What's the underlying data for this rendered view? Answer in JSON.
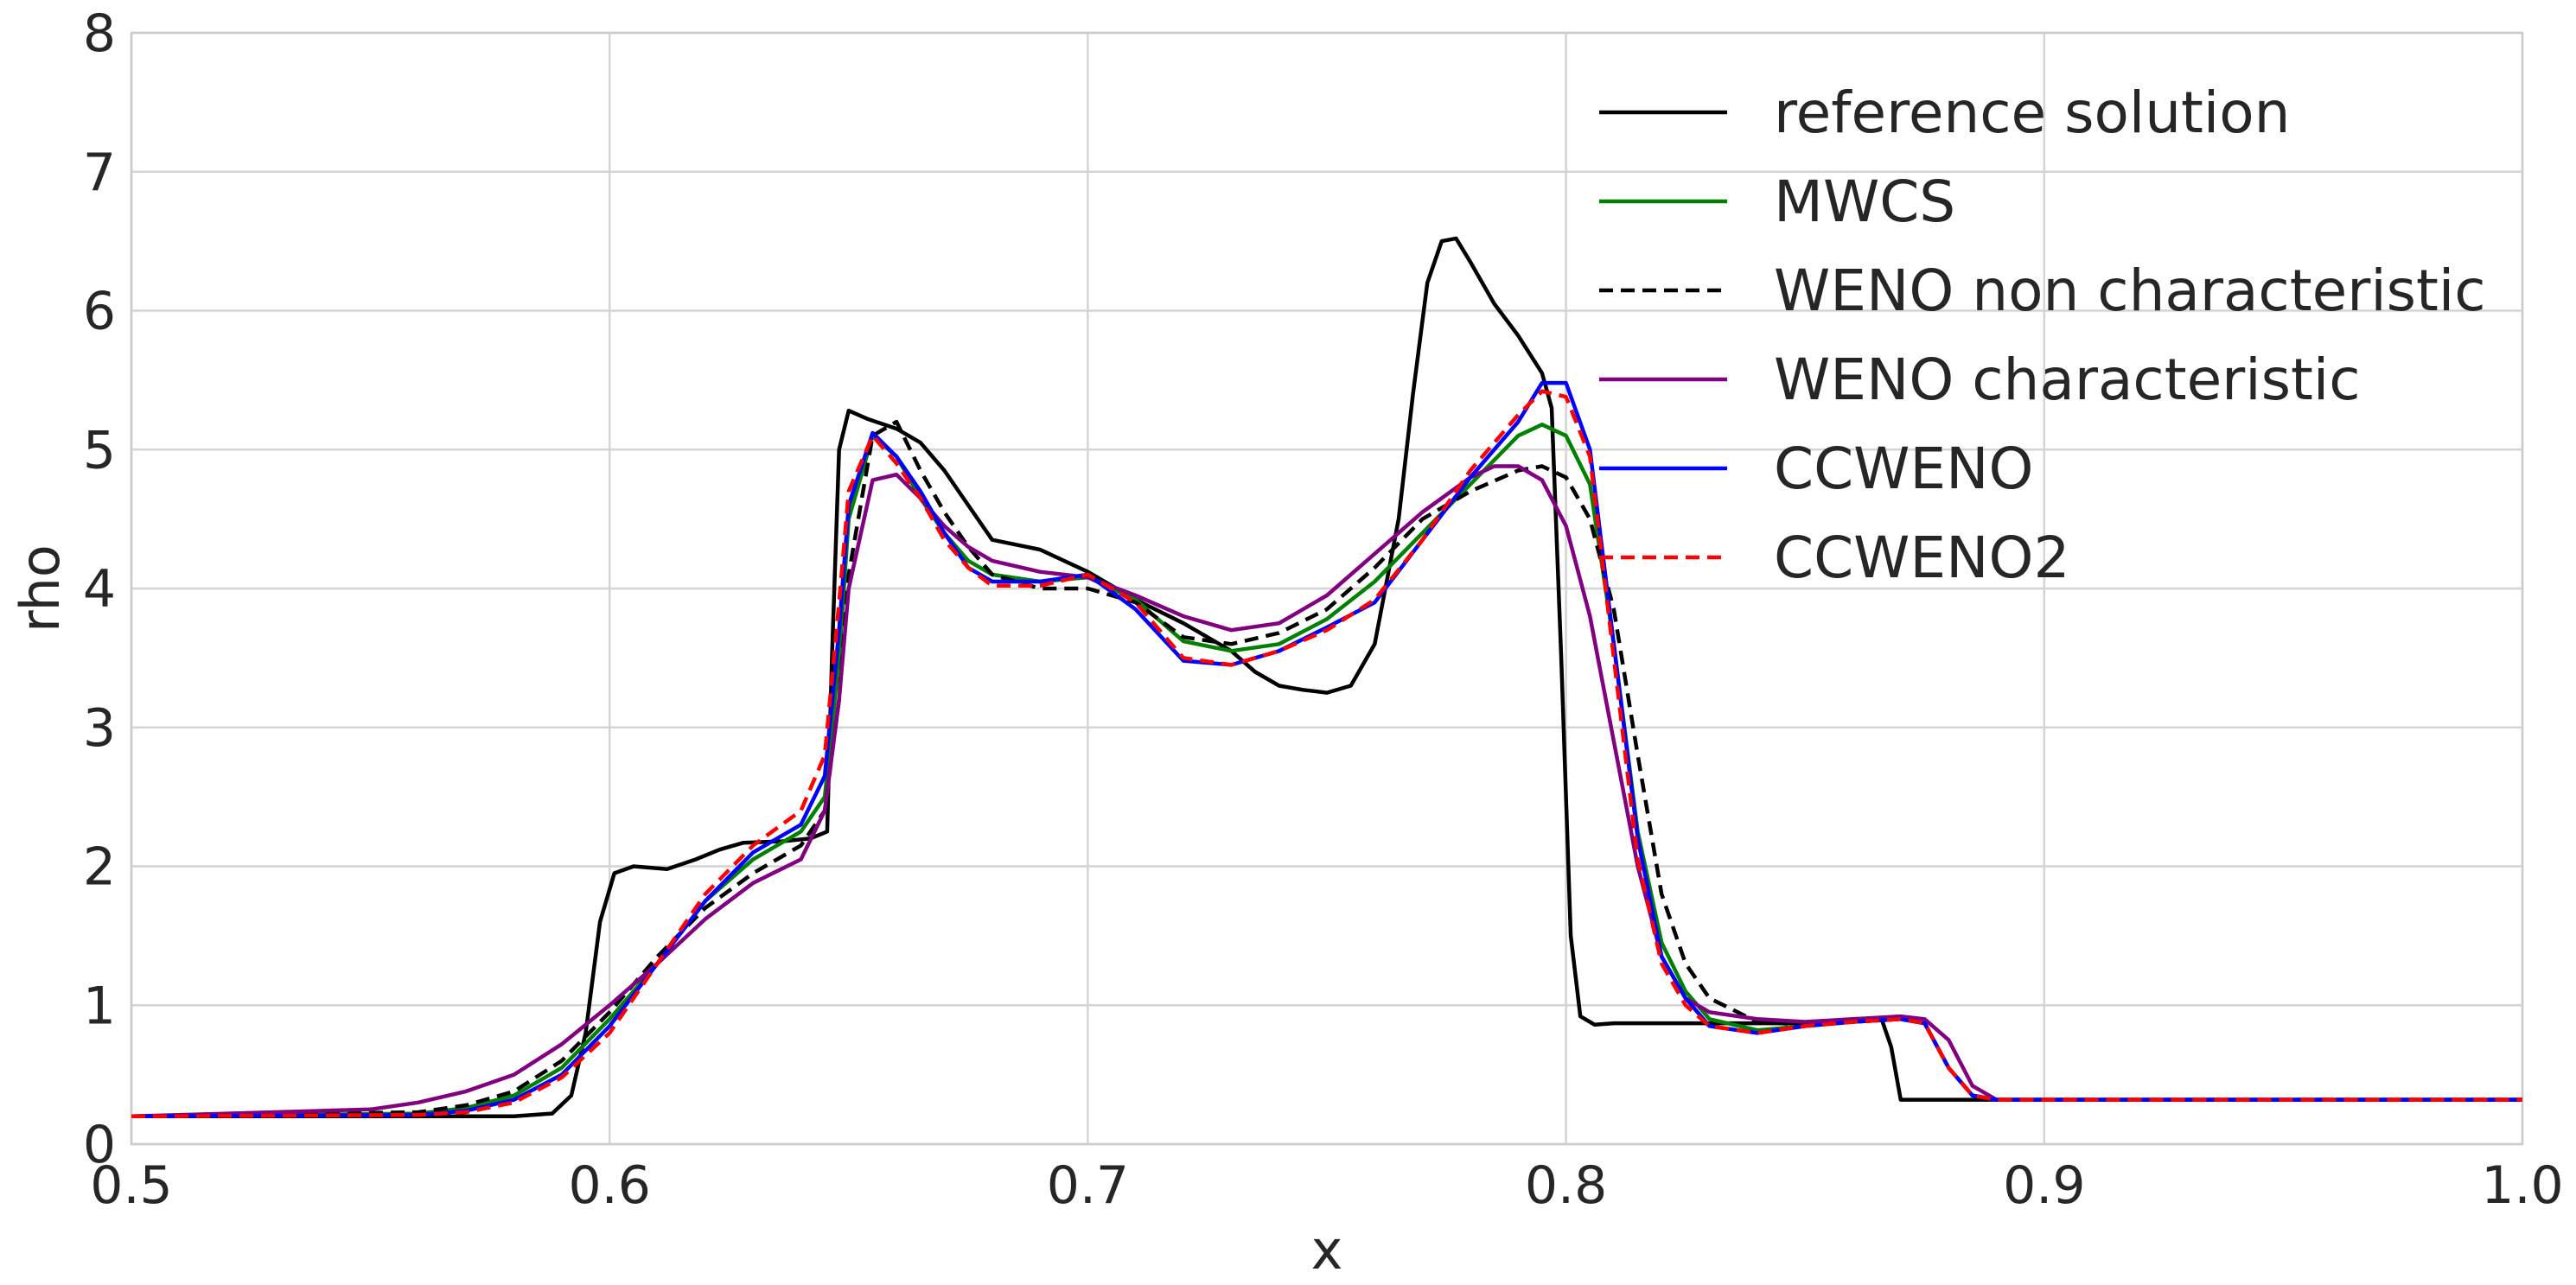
{
  "chart_data": {
    "type": "line",
    "title": "",
    "xlabel": "x",
    "ylabel": "rho",
    "xlim": [
      0.5,
      1.0
    ],
    "ylim": [
      0,
      8
    ],
    "xticks": [
      "0.5",
      "0.6",
      "0.7",
      "0.8",
      "0.9",
      "1.0"
    ],
    "yticks": [
      "0",
      "1",
      "2",
      "3",
      "4",
      "5",
      "6",
      "7",
      "8"
    ],
    "grid": true,
    "legend_position": "top-right",
    "series": [
      {
        "name": "reference solution",
        "color": "#000000",
        "dash": "solid",
        "x": [
          0.5,
          0.58,
          0.588,
          0.592,
          0.595,
          0.598,
          0.601,
          0.605,
          0.612,
          0.618,
          0.623,
          0.628,
          0.636,
          0.642,
          0.6455,
          0.6465,
          0.648,
          0.65,
          0.654,
          0.66,
          0.665,
          0.67,
          0.675,
          0.68,
          0.69,
          0.7,
          0.71,
          0.72,
          0.73,
          0.735,
          0.74,
          0.745,
          0.75,
          0.755,
          0.76,
          0.765,
          0.768,
          0.771,
          0.774,
          0.777,
          0.78,
          0.785,
          0.79,
          0.795,
          0.797,
          0.799,
          0.801,
          0.803,
          0.806,
          0.81,
          0.82,
          0.83,
          0.84,
          0.85,
          0.86,
          0.866,
          0.868,
          0.87,
          0.88,
          0.9,
          1.0
        ],
        "y": [
          0.2,
          0.2,
          0.22,
          0.35,
          0.8,
          1.6,
          1.95,
          2.0,
          1.98,
          2.05,
          2.12,
          2.17,
          2.18,
          2.2,
          2.25,
          3.5,
          5.0,
          5.28,
          5.22,
          5.15,
          5.05,
          4.85,
          4.6,
          4.35,
          4.28,
          4.12,
          3.92,
          3.75,
          3.55,
          3.4,
          3.3,
          3.27,
          3.25,
          3.3,
          3.6,
          4.5,
          5.4,
          6.2,
          6.5,
          6.52,
          6.35,
          6.05,
          5.82,
          5.55,
          5.3,
          3.5,
          1.5,
          0.92,
          0.86,
          0.87,
          0.87,
          0.87,
          0.87,
          0.87,
          0.88,
          0.9,
          0.7,
          0.32,
          0.32,
          0.32,
          0.32
        ]
      },
      {
        "name": "MWCS",
        "color": "#008000",
        "dash": "solid",
        "x": [
          0.5,
          0.56,
          0.57,
          0.58,
          0.59,
          0.6,
          0.61,
          0.62,
          0.63,
          0.64,
          0.645,
          0.648,
          0.65,
          0.655,
          0.66,
          0.665,
          0.67,
          0.675,
          0.68,
          0.69,
          0.7,
          0.71,
          0.72,
          0.73,
          0.74,
          0.75,
          0.76,
          0.77,
          0.78,
          0.79,
          0.795,
          0.8,
          0.805,
          0.81,
          0.815,
          0.82,
          0.825,
          0.83,
          0.84,
          0.85,
          0.86,
          0.87,
          0.875,
          0.88,
          0.885,
          0.89,
          0.9,
          1.0
        ],
        "y": [
          0.2,
          0.22,
          0.26,
          0.35,
          0.55,
          0.9,
          1.3,
          1.75,
          2.05,
          2.25,
          2.5,
          3.5,
          4.5,
          5.1,
          4.95,
          4.65,
          4.4,
          4.2,
          4.1,
          4.05,
          4.08,
          3.92,
          3.62,
          3.55,
          3.6,
          3.78,
          4.05,
          4.4,
          4.75,
          5.1,
          5.18,
          5.1,
          4.75,
          3.6,
          2.25,
          1.45,
          1.1,
          0.9,
          0.82,
          0.85,
          0.88,
          0.9,
          0.87,
          0.55,
          0.35,
          0.32,
          0.32,
          0.32
        ]
      },
      {
        "name": "WENO non characteristic",
        "color": "#000000",
        "dash": "dashed",
        "x": [
          0.5,
          0.56,
          0.57,
          0.58,
          0.59,
          0.6,
          0.61,
          0.62,
          0.63,
          0.64,
          0.645,
          0.648,
          0.65,
          0.655,
          0.66,
          0.665,
          0.67,
          0.675,
          0.68,
          0.69,
          0.7,
          0.71,
          0.72,
          0.73,
          0.74,
          0.75,
          0.76,
          0.77,
          0.78,
          0.79,
          0.795,
          0.8,
          0.805,
          0.81,
          0.815,
          0.82,
          0.825,
          0.83,
          0.84,
          0.85,
          0.86,
          0.87,
          0.875,
          0.88,
          0.885,
          0.89,
          0.9,
          1.0
        ],
        "y": [
          0.2,
          0.23,
          0.28,
          0.38,
          0.6,
          0.95,
          1.35,
          1.7,
          1.95,
          2.15,
          2.4,
          3.2,
          4.1,
          5.1,
          5.2,
          4.85,
          4.55,
          4.3,
          4.1,
          4.0,
          4.0,
          3.9,
          3.65,
          3.6,
          3.68,
          3.85,
          4.15,
          4.5,
          4.7,
          4.85,
          4.88,
          4.8,
          4.5,
          3.85,
          2.8,
          1.8,
          1.3,
          1.05,
          0.88,
          0.86,
          0.88,
          0.9,
          0.87,
          0.55,
          0.35,
          0.32,
          0.32,
          0.32
        ]
      },
      {
        "name": "WENO characteristic",
        "color": "#800080",
        "dash": "solid",
        "x": [
          0.5,
          0.55,
          0.56,
          0.57,
          0.58,
          0.59,
          0.6,
          0.61,
          0.62,
          0.63,
          0.64,
          0.645,
          0.648,
          0.65,
          0.655,
          0.66,
          0.665,
          0.67,
          0.675,
          0.68,
          0.69,
          0.7,
          0.71,
          0.72,
          0.73,
          0.74,
          0.75,
          0.76,
          0.77,
          0.78,
          0.785,
          0.79,
          0.795,
          0.8,
          0.805,
          0.81,
          0.815,
          0.82,
          0.825,
          0.83,
          0.84,
          0.85,
          0.86,
          0.87,
          0.875,
          0.88,
          0.885,
          0.89,
          0.9,
          1.0
        ],
        "y": [
          0.2,
          0.25,
          0.3,
          0.38,
          0.5,
          0.72,
          1.0,
          1.3,
          1.62,
          1.88,
          2.05,
          2.4,
          3.2,
          4.0,
          4.78,
          4.82,
          4.65,
          4.45,
          4.3,
          4.2,
          4.12,
          4.08,
          3.95,
          3.8,
          3.7,
          3.75,
          3.95,
          4.25,
          4.55,
          4.8,
          4.88,
          4.88,
          4.78,
          4.45,
          3.8,
          2.9,
          2.0,
          1.35,
          1.05,
          0.95,
          0.9,
          0.88,
          0.9,
          0.92,
          0.9,
          0.75,
          0.42,
          0.32,
          0.32,
          0.32
        ]
      },
      {
        "name": "CCWENO",
        "color": "#0000ff",
        "dash": "solid",
        "x": [
          0.5,
          0.56,
          0.57,
          0.58,
          0.59,
          0.6,
          0.61,
          0.62,
          0.63,
          0.64,
          0.645,
          0.648,
          0.65,
          0.655,
          0.66,
          0.665,
          0.67,
          0.675,
          0.68,
          0.69,
          0.7,
          0.71,
          0.72,
          0.73,
          0.74,
          0.75,
          0.76,
          0.77,
          0.78,
          0.79,
          0.795,
          0.8,
          0.805,
          0.81,
          0.815,
          0.82,
          0.825,
          0.83,
          0.84,
          0.85,
          0.86,
          0.87,
          0.875,
          0.88,
          0.885,
          0.89,
          0.9,
          1.0
        ],
        "y": [
          0.2,
          0.21,
          0.24,
          0.32,
          0.5,
          0.85,
          1.3,
          1.75,
          2.1,
          2.3,
          2.65,
          3.7,
          4.6,
          5.12,
          4.95,
          4.7,
          4.4,
          4.15,
          4.05,
          4.05,
          4.1,
          3.85,
          3.48,
          3.45,
          3.55,
          3.72,
          3.9,
          4.35,
          4.8,
          5.2,
          5.48,
          5.48,
          5.0,
          3.6,
          2.2,
          1.35,
          1.05,
          0.85,
          0.8,
          0.85,
          0.88,
          0.9,
          0.87,
          0.55,
          0.35,
          0.32,
          0.32,
          0.32
        ]
      },
      {
        "name": "CCWENO2",
        "color": "#ff0000",
        "dash": "dashed",
        "x": [
          0.5,
          0.56,
          0.57,
          0.58,
          0.59,
          0.6,
          0.61,
          0.62,
          0.63,
          0.64,
          0.645,
          0.648,
          0.65,
          0.655,
          0.66,
          0.665,
          0.67,
          0.675,
          0.68,
          0.69,
          0.7,
          0.71,
          0.72,
          0.73,
          0.74,
          0.75,
          0.76,
          0.77,
          0.78,
          0.79,
          0.795,
          0.8,
          0.805,
          0.81,
          0.815,
          0.82,
          0.825,
          0.83,
          0.84,
          0.85,
          0.86,
          0.87,
          0.875,
          0.88,
          0.885,
          0.89,
          0.9,
          1.0
        ],
        "y": [
          0.2,
          0.21,
          0.23,
          0.3,
          0.48,
          0.8,
          1.3,
          1.8,
          2.15,
          2.4,
          2.8,
          3.9,
          4.7,
          5.1,
          4.9,
          4.65,
          4.35,
          4.15,
          4.02,
          4.02,
          4.1,
          3.9,
          3.5,
          3.45,
          3.55,
          3.7,
          3.92,
          4.35,
          4.85,
          5.25,
          5.42,
          5.38,
          4.95,
          3.5,
          2.05,
          1.3,
          1.0,
          0.85,
          0.8,
          0.85,
          0.88,
          0.9,
          0.87,
          0.55,
          0.35,
          0.32,
          0.32,
          0.32
        ]
      }
    ]
  }
}
